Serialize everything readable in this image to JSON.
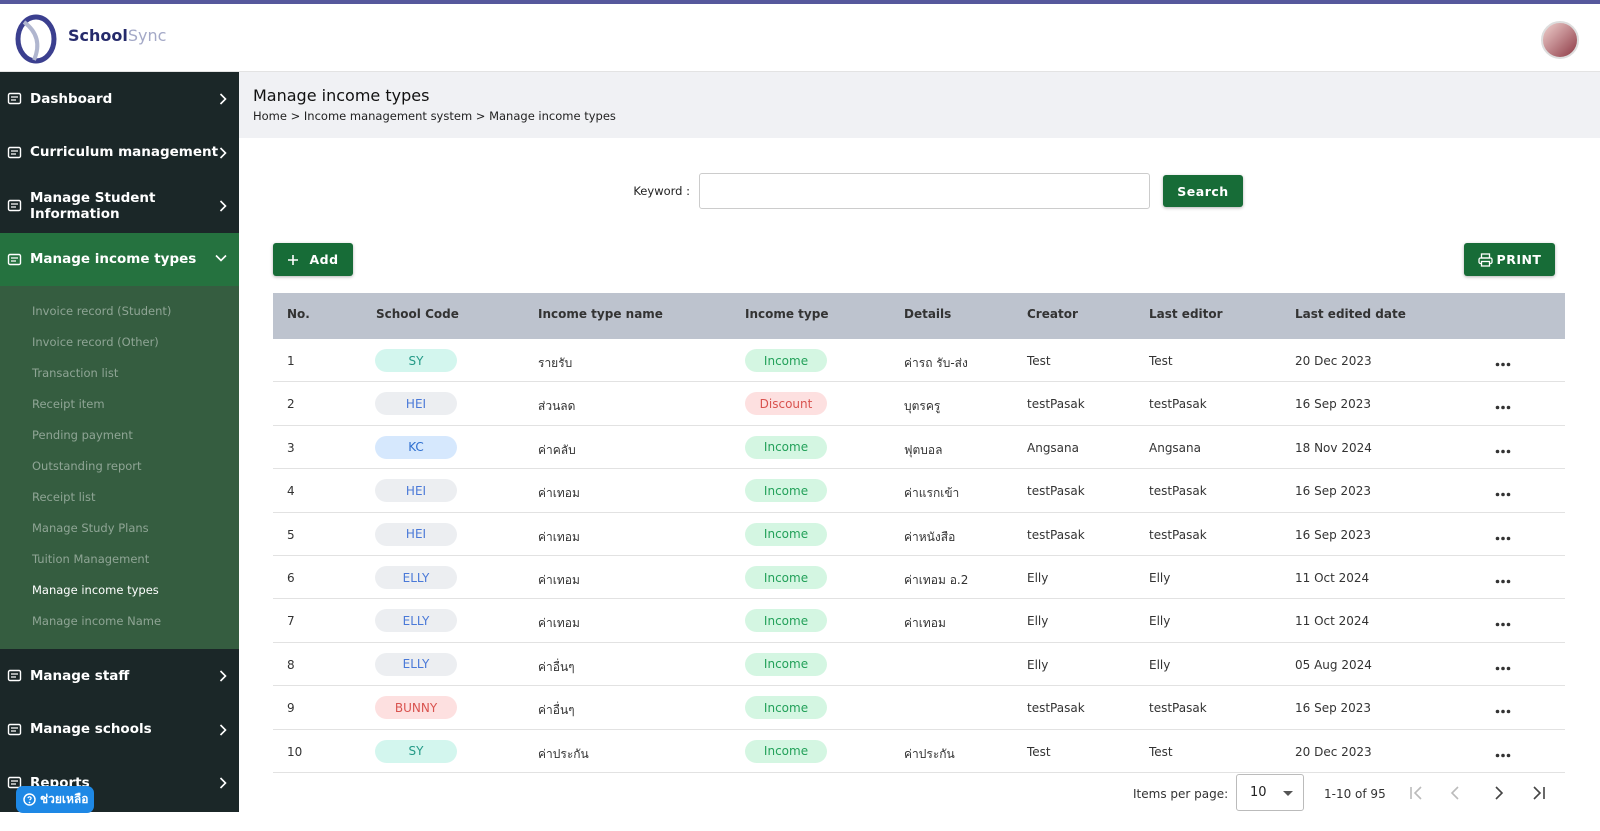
{
  "header": {
    "logo_bold": "School",
    "logo_light": "Sync"
  },
  "sidebar": {
    "menu_top": [
      "Dashboard",
      "Curriculum management",
      "Manage Student Information",
      "Manage income types"
    ],
    "submenu": [
      "Invoice record (Student)",
      "Invoice record (Other)",
      "Transaction list",
      "Receipt item",
      "Pending payment",
      "Outstanding report",
      "Receipt list",
      "Manage Study Plans",
      "Tuition Management",
      "Manage income types",
      "Manage income Name"
    ],
    "menu_bottom": [
      "Manage staff",
      "Manage schools",
      "Reports"
    ],
    "help": "ช่วยเหลือ"
  },
  "page": {
    "title": "Manage income types",
    "breadcrumb": "Home > Income management system > Manage income types"
  },
  "search": {
    "label": "Keyword :",
    "button": "Search"
  },
  "actions": {
    "add": "Add",
    "print": "PRINT"
  },
  "table": {
    "columns": [
      "No.",
      "School Code",
      "Income type name",
      "Income type",
      "Details",
      "Creator",
      "Last editor",
      "Last edited date"
    ],
    "rows": [
      [
        1,
        "SY",
        "รายรับ",
        "Income",
        "ค่ารถ รับ-ส่ง",
        "Test",
        "Test",
        "20 Dec 2023"
      ],
      [
        2,
        "HEI",
        "ส่วนลด",
        "Discount",
        "บุตรครู",
        "testPasak",
        "testPasak",
        "16 Sep 2023"
      ],
      [
        3,
        "KC",
        "ค่าคลับ",
        "Income",
        "ฟุตบอล",
        "Angsana",
        "Angsana",
        "18 Nov 2024"
      ],
      [
        4,
        "HEI",
        "ค่าเทอม",
        "Income",
        "ค่าแรกเข้า",
        "testPasak",
        "testPasak",
        "16 Sep 2023"
      ],
      [
        5,
        "HEI",
        "ค่าเทอม",
        "Income",
        "ค่าหนังสือ",
        "testPasak",
        "testPasak",
        "16 Sep 2023"
      ],
      [
        6,
        "ELLY",
        "ค่าเทอม",
        "Income",
        "ค่าเทอม อ.2",
        "Elly",
        "Elly",
        "11 Oct 2024"
      ],
      [
        7,
        "ELLY",
        "ค่าเทอม",
        "Income",
        "ค่าเทอม",
        "Elly",
        "Elly",
        "11 Oct 2024"
      ],
      [
        8,
        "ELLY",
        "ค่าอื่นๆ",
        "Income",
        null,
        "Elly",
        "Elly",
        "05 Aug 2024"
      ],
      [
        9,
        "BUNNY",
        "ค่าอื่นๆ",
        "Income",
        null,
        "testPasak",
        "testPasak",
        "16 Sep 2023"
      ],
      [
        10,
        "SY",
        "ค่าประกัน",
        "Income",
        "ค่าประกัน",
        "Test",
        "Test",
        "20 Dec 2023"
      ]
    ]
  },
  "pagination": {
    "items_per_page_label": "Items per page:",
    "page_size": 10,
    "range": "1-10 of 95"
  }
}
